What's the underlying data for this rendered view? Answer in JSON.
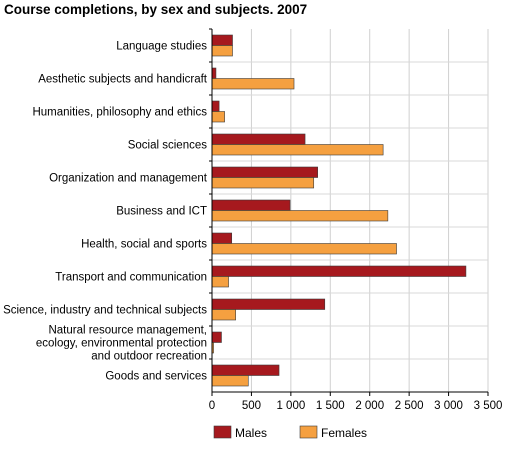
{
  "chart_data": {
    "type": "bar",
    "orientation": "horizontal",
    "title": "Course completions, by sex and subjects. 2007",
    "xlabel": "",
    "ylabel": "",
    "xlim": [
      0,
      3500
    ],
    "xticks": [
      0,
      500,
      1000,
      1500,
      2000,
      2500,
      3000,
      3500
    ],
    "xtick_labels": [
      "0",
      "500",
      "1 000",
      "1 500",
      "2 000",
      "2 500",
      "3 000",
      "3 500"
    ],
    "grid": "vertical",
    "legend_position": "bottom",
    "categories": [
      [
        "Language studies"
      ],
      [
        "Aesthetic subjects and handicraft"
      ],
      [
        "Humanities, philosophy and ethics"
      ],
      [
        "Social sciences"
      ],
      [
        "Organization and management"
      ],
      [
        "Business and ICT"
      ],
      [
        "Health, social and sports"
      ],
      [
        "Transport and communication"
      ],
      [
        "Science, industry and technical subjects"
      ],
      [
        "Natural resource management,",
        "ecology, environmental protection",
        "and outdoor recreation"
      ],
      [
        "Goods and services"
      ]
    ],
    "series": [
      {
        "name": "Males",
        "color": "#a6191e",
        "values": [
          260,
          50,
          90,
          1180,
          1340,
          990,
          250,
          3220,
          1430,
          120,
          850
        ]
      },
      {
        "name": "Females",
        "color": "#f5a040",
        "values": [
          260,
          1040,
          160,
          2170,
          1290,
          2230,
          2340,
          210,
          300,
          20,
          460
        ]
      }
    ]
  }
}
